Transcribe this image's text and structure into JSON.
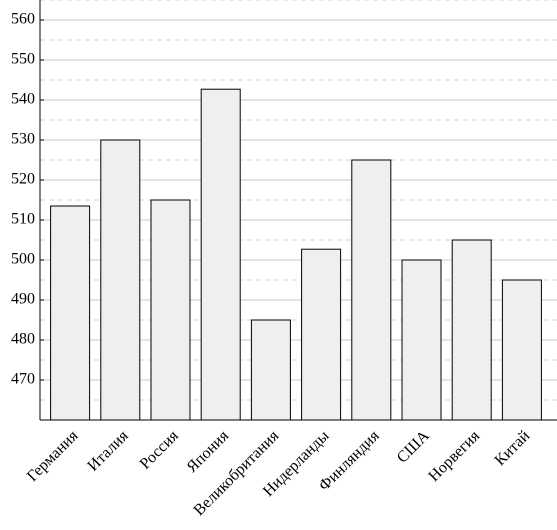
{
  "chart_data": {
    "type": "bar",
    "categories": [
      "Германия",
      "Италия",
      "Россия",
      "Япония",
      "Великобритания",
      "Нидерланды",
      "Финляндия",
      "США",
      "Норвегия",
      "Китай"
    ],
    "values": [
      513.5,
      530,
      515,
      542.7,
      485,
      502.7,
      525,
      500,
      505,
      495
    ],
    "color": "#efefef",
    "ylim": [
      460,
      565
    ],
    "yticks": [
      470,
      480,
      490,
      500,
      510,
      520,
      530,
      540,
      550,
      560
    ],
    "minor_yticks": [
      465,
      475,
      485,
      495,
      505,
      515,
      525,
      535,
      545,
      555,
      565
    ],
    "grid": true
  }
}
